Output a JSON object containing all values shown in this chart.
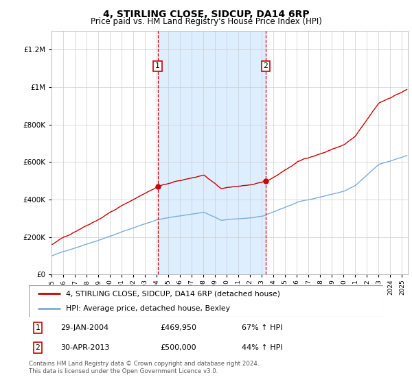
{
  "title": "4, STIRLING CLOSE, SIDCUP, DA14 6RP",
  "subtitle": "Price paid vs. HM Land Registry's House Price Index (HPI)",
  "legend_line1": "4, STIRLING CLOSE, SIDCUP, DA14 6RP (detached house)",
  "legend_line2": "HPI: Average price, detached house, Bexley",
  "annotation1_label": "1",
  "annotation1_date": "29-JAN-2004",
  "annotation1_price": "£469,950",
  "annotation1_hpi": "67% ↑ HPI",
  "annotation2_label": "2",
  "annotation2_date": "30-APR-2013",
  "annotation2_price": "£500,000",
  "annotation2_hpi": "44% ↑ HPI",
  "footer": "Contains HM Land Registry data © Crown copyright and database right 2024.\nThis data is licensed under the Open Government Licence v3.0.",
  "red_color": "#cc0000",
  "blue_color": "#7aacdc",
  "shaded_color": "#ddeeff",
  "marker_box_color": "#cc0000",
  "ylim": [
    0,
    1300000
  ],
  "xlim_start": 1995.0,
  "xlim_end": 2025.5,
  "sale1_x": 2004.08,
  "sale1_y": 469950,
  "sale2_x": 2013.33,
  "sale2_y": 500000
}
